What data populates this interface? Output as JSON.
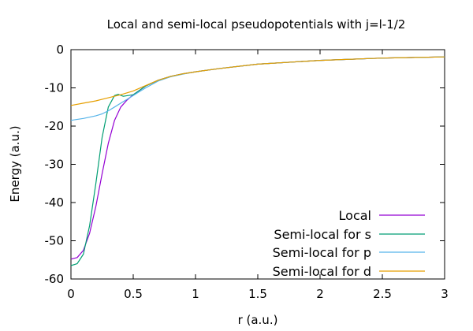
{
  "chart_data": {
    "type": "line",
    "title": "Local and semi-local pseudopotentials with j=l-1/2",
    "xlabel": "r (a.u.)",
    "ylabel": "Energy (a.u.)",
    "xlim": [
      0,
      3
    ],
    "ylim": [
      -60,
      0
    ],
    "xticks": [
      0,
      0.5,
      1,
      1.5,
      2,
      2.5,
      3
    ],
    "xtick_labels": [
      "0",
      "0.5",
      "1",
      "1.5",
      "2",
      "2.5",
      "3"
    ],
    "yticks": [
      0,
      -10,
      -20,
      -30,
      -40,
      -50,
      -60
    ],
    "ytick_labels": [
      "0",
      "-10",
      "-20",
      "-30",
      "-40",
      "-50",
      "-60"
    ],
    "grid": false,
    "legend_position": "bottom-right",
    "series": [
      {
        "name": "Local",
        "color": "#9400d3",
        "x": [
          0,
          0.05,
          0.1,
          0.15,
          0.2,
          0.25,
          0.3,
          0.35,
          0.4,
          0.45,
          0.5,
          0.6,
          0.7,
          0.8,
          0.9,
          1.0,
          1.2,
          1.5,
          2.0,
          2.5,
          3.0
        ],
        "y": [
          -54.8,
          -54.4,
          -52.5,
          -48.0,
          -41.0,
          -32.5,
          -24.5,
          -18.5,
          -15.0,
          -13.2,
          -11.8,
          -9.5,
          -8.0,
          -7.0,
          -6.3,
          -5.8,
          -4.9,
          -3.8,
          -2.8,
          -2.2,
          -1.9
        ]
      },
      {
        "name": "Semi-local for s",
        "color": "#009e73",
        "x": [
          0,
          0.05,
          0.1,
          0.15,
          0.2,
          0.25,
          0.3,
          0.35,
          0.38,
          0.42,
          0.5,
          0.6,
          0.7,
          0.8,
          0.9,
          1.0,
          1.2,
          1.5,
          2.0,
          2.5,
          3.0
        ],
        "y": [
          -56.5,
          -56.0,
          -53.5,
          -46.0,
          -35.0,
          -23.0,
          -15.0,
          -12.0,
          -11.7,
          -12.2,
          -11.8,
          -9.5,
          -8.0,
          -7.0,
          -6.3,
          -5.8,
          -4.9,
          -3.8,
          -2.8,
          -2.2,
          -1.9
        ]
      },
      {
        "name": "Semi-local for p",
        "color": "#56b4e9",
        "x": [
          0,
          0.1,
          0.2,
          0.25,
          0.3,
          0.35,
          0.4,
          0.45,
          0.5,
          0.55,
          0.6,
          0.7,
          0.8,
          0.9,
          1.0,
          1.2,
          1.5,
          2.0,
          2.5,
          3.0
        ],
        "y": [
          -18.5,
          -18.0,
          -17.3,
          -16.8,
          -16.0,
          -15.0,
          -14.0,
          -13.0,
          -12.0,
          -11.0,
          -10.0,
          -8.2,
          -7.1,
          -6.4,
          -5.8,
          -4.9,
          -3.8,
          -2.8,
          -2.2,
          -1.9
        ]
      },
      {
        "name": "Semi-local for d",
        "color": "#e69f00",
        "x": [
          0,
          0.1,
          0.2,
          0.3,
          0.4,
          0.5,
          0.6,
          0.7,
          0.8,
          0.9,
          1.0,
          1.2,
          1.5,
          2.0,
          2.5,
          3.0
        ],
        "y": [
          -14.6,
          -14.0,
          -13.4,
          -12.6,
          -11.8,
          -10.8,
          -9.4,
          -8.0,
          -7.0,
          -6.3,
          -5.8,
          -4.9,
          -3.8,
          -2.8,
          -2.2,
          -1.9
        ]
      }
    ]
  }
}
